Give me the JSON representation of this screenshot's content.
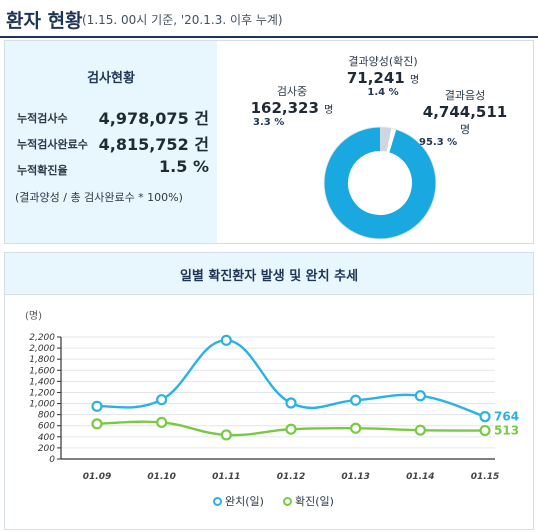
{
  "header": {
    "title": "환자 현황",
    "subtitle": "(1.15. 00시 기준, '20.1.3. 이후 누계)"
  },
  "summary": {
    "heading": "검사현황",
    "rows": [
      {
        "label": "누적검사수",
        "value": "4,978,075 건"
      },
      {
        "label": "누적검사완료수",
        "value": "4,815,752 건"
      },
      {
        "label": "누적확진율",
        "value": "1.5 %"
      }
    ],
    "note": "(결과양성 / 총 검사완료수 * 100%)"
  },
  "donut": {
    "segments": [
      {
        "name": "결과음성",
        "count": "4,744,511",
        "unit": "명",
        "percent": "95.3 %",
        "share": 95.3,
        "color": "#1aa8e0"
      },
      {
        "name": "검사중",
        "count": "162,323",
        "unit": "명",
        "percent": "3.3 %",
        "share": 3.3,
        "color": "#cfd6dd"
      },
      {
        "name": "결과양성(확진)",
        "count": "71,241",
        "unit": "명",
        "percent": "1.4 %",
        "share": 1.4,
        "color": "#ffffff"
      }
    ]
  },
  "trend": {
    "title": "일별 확진환자 발생 및 완치 추세",
    "legend": {
      "recovered": "완치(일)",
      "confirmed": "확진(일)"
    }
  },
  "chart_data": {
    "type": "line",
    "y_unit": "(명)",
    "ylim": [
      0,
      2200
    ],
    "yticks": [
      "2,200",
      "2,000",
      "1,800",
      "1,600",
      "1,400",
      "1,200",
      "1,000",
      "800",
      "600",
      "400",
      "200",
      "0"
    ],
    "categories": [
      "01.09",
      "01.10",
      "01.11",
      "01.12",
      "01.13",
      "01.14",
      "01.15"
    ],
    "series": [
      {
        "name": "완치(일)",
        "color": "#29b2e2",
        "values": [
          950,
          1070,
          2140,
          1010,
          1060,
          1140,
          764
        ],
        "end_label": "764"
      },
      {
        "name": "확진(일)",
        "color": "#7ac943",
        "values": [
          634,
          660,
          434,
          537,
          555,
          520,
          513
        ],
        "end_label": "513"
      }
    ]
  }
}
